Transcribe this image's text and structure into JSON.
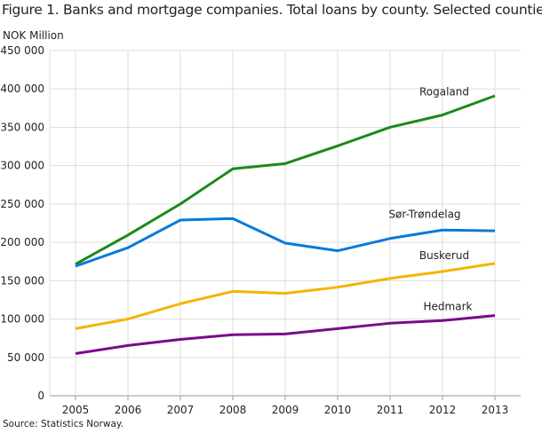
{
  "chart_data": {
    "type": "line",
    "title": "Figure 1. Banks and mortgage companies. Total loans by county. Selected counties",
    "ylabel": "NOK Million",
    "source": "Source: Statistics Norway.",
    "x": [
      "2005",
      "2006",
      "2007",
      "2008",
      "2009",
      "2010",
      "2011",
      "2012",
      "2013"
    ],
    "ylim": [
      0,
      450000
    ],
    "yticks": [
      0,
      50000,
      100000,
      150000,
      200000,
      250000,
      300000,
      350000,
      400000,
      450000
    ],
    "ytick_labels": [
      "0",
      "50 000",
      "100 000",
      "150 000",
      "200 000",
      "250 000",
      "300 000",
      "350 000",
      "400 000",
      "450 000"
    ],
    "grid": true,
    "series": [
      {
        "name": "Rogaland",
        "color": "#1a8a1a",
        "values": [
          171500,
          209500,
          250000,
          295800,
          302700,
          325700,
          350000,
          366000,
          391000
        ]
      },
      {
        "name": "Sør-Trøndelag",
        "color": "#0a7ad8",
        "values": [
          169000,
          193000,
          229000,
          231000,
          199000,
          189000,
          205000,
          216000,
          215000
        ]
      },
      {
        "name": "Buskerud",
        "color": "#f5b400",
        "values": [
          87500,
          100000,
          120000,
          136000,
          133500,
          141500,
          153000,
          162000,
          172500
        ]
      },
      {
        "name": "Hedmark",
        "color": "#7a0a8c",
        "values": [
          55000,
          65500,
          73500,
          79500,
          80500,
          87500,
          94500,
          98000,
          104500
        ]
      }
    ]
  }
}
